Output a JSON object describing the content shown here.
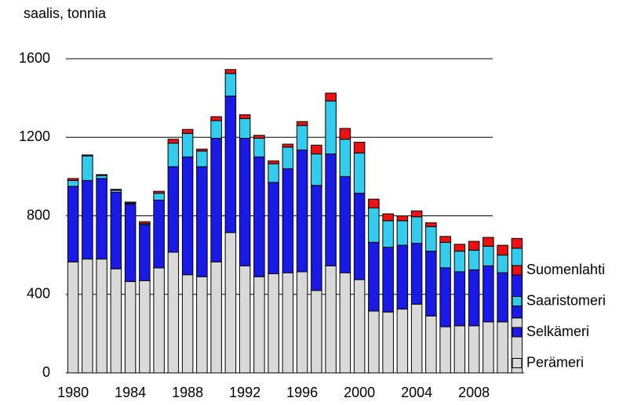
{
  "chart_data": {
    "type": "stacked_bar",
    "y_label": "saalis, tonnia",
    "categories": [
      "1980",
      null,
      null,
      null,
      "1984",
      null,
      null,
      null,
      "1988",
      null,
      null,
      null,
      "1992",
      null,
      null,
      null,
      "1996",
      null,
      null,
      null,
      "2000",
      null,
      null,
      null,
      "2004",
      null,
      null,
      null,
      "2008",
      null,
      null,
      null
    ],
    "series": [
      {
        "name": "Perämeri",
        "color": "#d9d9d9",
        "values": [
          565,
          580,
          580,
          530,
          465,
          470,
          535,
          615,
          500,
          490,
          565,
          715,
          545,
          490,
          505,
          510,
          515,
          420,
          545,
          510,
          475,
          315,
          310,
          325,
          350,
          290,
          235,
          240,
          240,
          260,
          260,
          280
        ]
      },
      {
        "name": "Selkämeri",
        "color": "#1a1ae6",
        "values": [
          385,
          400,
          410,
          390,
          395,
          285,
          345,
          435,
          600,
          560,
          630,
          695,
          650,
          610,
          465,
          530,
          620,
          535,
          570,
          490,
          440,
          350,
          330,
          325,
          310,
          330,
          300,
          275,
          285,
          285,
          250,
          230
        ]
      },
      {
        "name": "Saaristomeri",
        "color": "#33ccee",
        "values": [
          30,
          125,
          15,
          10,
          5,
          5,
          35,
          120,
          120,
          80,
          90,
          115,
          100,
          95,
          95,
          110,
          125,
          160,
          270,
          190,
          205,
          175,
          135,
          125,
          135,
          125,
          130,
          105,
          100,
          100,
          90,
          125
        ]
      },
      {
        "name": "Suomenlahti",
        "color": "#ee1111",
        "values": [
          10,
          5,
          5,
          5,
          5,
          10,
          10,
          20,
          20,
          10,
          20,
          20,
          20,
          15,
          15,
          15,
          20,
          45,
          40,
          55,
          55,
          45,
          35,
          25,
          30,
          20,
          30,
          35,
          45,
          45,
          50,
          50
        ]
      }
    ],
    "ylim": [
      0,
      1600
    ],
    "yticks": [
      0,
      400,
      800,
      1200,
      1600
    ],
    "grid": true,
    "legend": "right"
  }
}
